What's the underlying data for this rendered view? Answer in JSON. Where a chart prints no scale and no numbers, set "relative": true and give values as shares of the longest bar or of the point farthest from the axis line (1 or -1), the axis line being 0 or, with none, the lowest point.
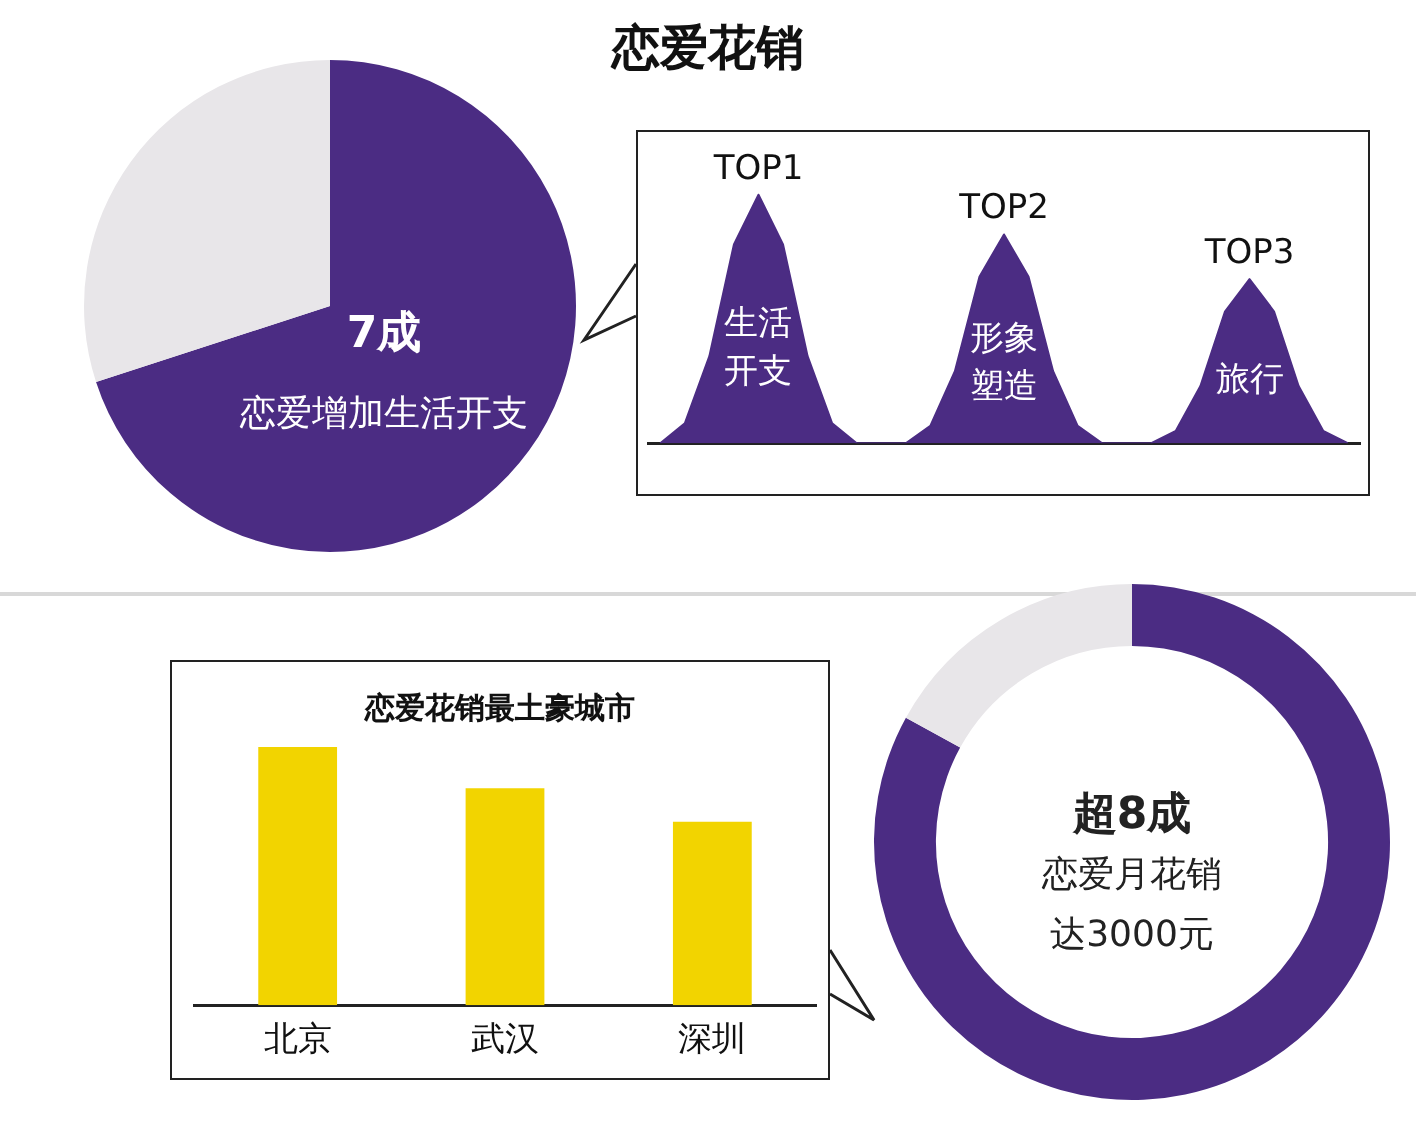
{
  "chart_data": [
    {
      "type": "pie",
      "title": "恋爱花销",
      "categories": [
        null,
        null
      ],
      "values": [
        70,
        30
      ],
      "colors": [
        "#4b2c83",
        "#e8e6e9"
      ],
      "annotations": [
        "7成",
        "恋爱增加生活开支"
      ]
    },
    {
      "type": "area",
      "relative": true,
      "categories": [
        null,
        null,
        null,
        null,
        null,
        null,
        null,
        null,
        null,
        null,
        null,
        null,
        null,
        null,
        null,
        null,
        null,
        null,
        null,
        null,
        null,
        null,
        null,
        null,
        null,
        null,
        null,
        null,
        null
      ],
      "series": [
        {
          "color": "#4b2c83",
          "values": [
            0,
            0.08,
            0.35,
            0.8,
            1,
            0.8,
            0.35,
            0.08,
            0,
            0,
            0,
            0.07,
            0.29,
            0.67,
            0.84,
            0.67,
            0.29,
            0.07,
            0,
            0,
            0,
            0.05,
            0.23,
            0.53,
            0.66,
            0.53,
            0.23,
            0.05,
            0
          ]
        }
      ],
      "annotations": [
        "TOP1",
        "TOP2",
        "TOP3",
        "生活开支",
        "形象塑造",
        "旅行"
      ]
    },
    {
      "type": "bar",
      "relative": true,
      "title": "恋爱花销最土豪城市",
      "categories": [
        "北京",
        "武汉",
        "深圳"
      ],
      "values": [
        1,
        0.84,
        0.71
      ],
      "color": "#f2d400"
    },
    {
      "type": "donut",
      "categories": [
        null,
        null
      ],
      "values": [
        83,
        17
      ],
      "colors": [
        "#4b2c83",
        "#e8e6e9"
      ],
      "annotations": [
        "超8成",
        "恋爱月花销达3000元"
      ]
    }
  ]
}
